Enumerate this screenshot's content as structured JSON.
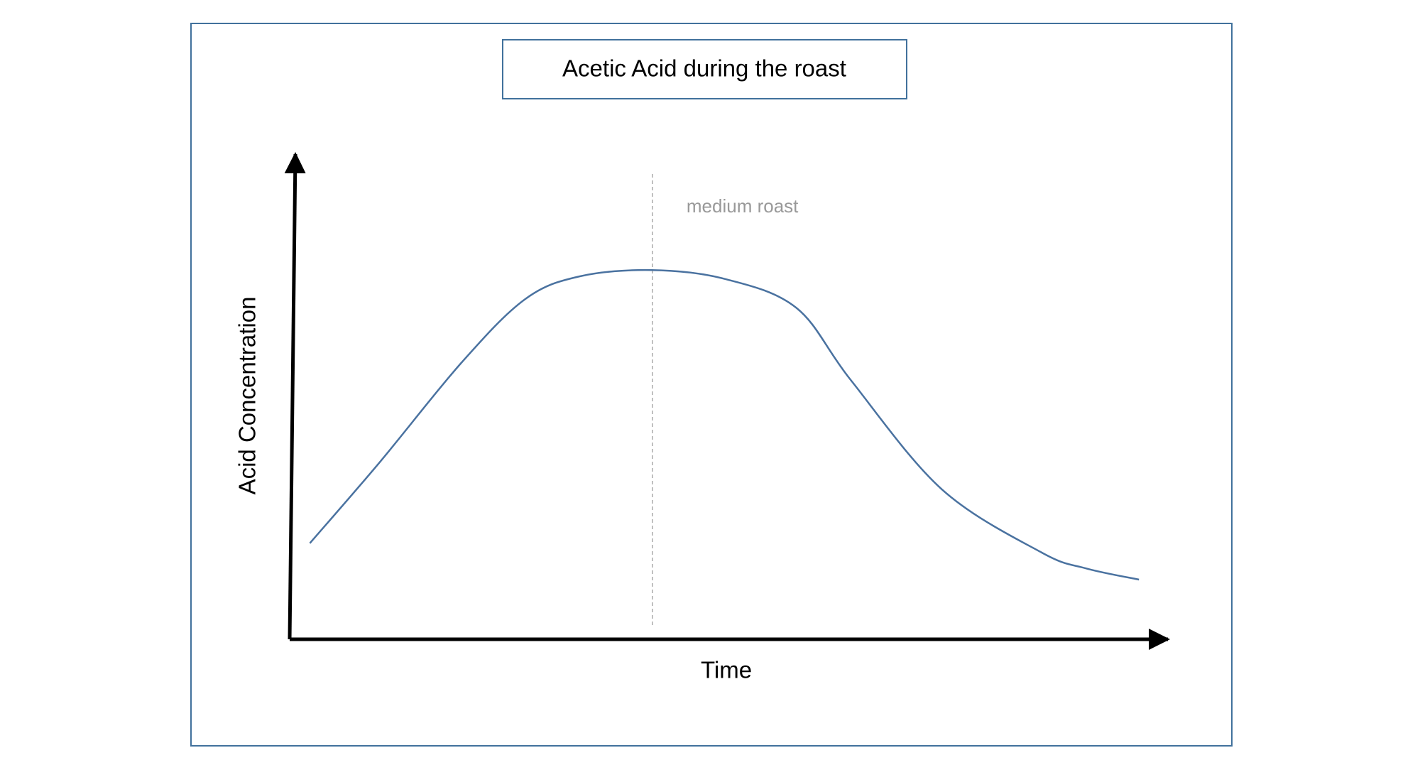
{
  "chart_data": {
    "type": "line",
    "title": "Acetic Acid during the roast",
    "x_label": "Time",
    "y_label": "Acid Concentration",
    "x": [
      2.3,
      10.3,
      19.6,
      26.8,
      33.0,
      41.2,
      49.5,
      57.7,
      63.9,
      74.2,
      85.6,
      90.7,
      96.7
    ],
    "series": [
      {
        "color": "#4a72a0",
        "values": [
          19.8,
          36.6,
          57.1,
          70.1,
          74.8,
          76.1,
          74.3,
          68.3,
          53.4,
          31.0,
          17.9,
          14.6,
          12.3
        ]
      }
    ],
    "xlim": [
      0,
      100
    ],
    "ylim": [
      0,
      100
    ],
    "annotations": [
      {
        "text": "medium roast",
        "x": 41.3
      }
    ]
  }
}
